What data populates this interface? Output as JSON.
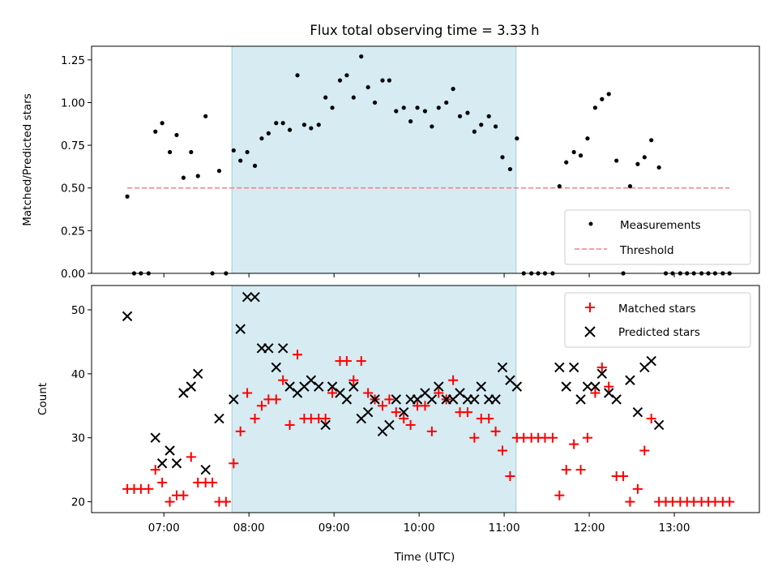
{
  "colors": {
    "band": "#add8e6",
    "measure": "#000000",
    "threshold": "#ff7f7f",
    "matched": "#ff0000",
    "predicted": "#000000"
  },
  "chart_data": [
    {
      "type": "scatter",
      "title": "Flux total observing time = 3.33 h",
      "xlabel": "",
      "ylabel": "Matched/Predicted stars",
      "xlim": [
        6.15,
        14.0
      ],
      "ylim": [
        0,
        1.33
      ],
      "yticks": [
        0.0,
        0.25,
        0.5,
        0.75,
        1.0,
        1.25
      ],
      "ytick_labels": [
        "0.00",
        "0.25",
        "0.50",
        "0.75",
        "1.00",
        "1.25"
      ],
      "shaded_interval": [
        7.8,
        11.14
      ],
      "threshold": {
        "value": 0.5,
        "x_range": [
          6.57,
          13.65
        ],
        "label": "Threshold"
      },
      "legend": {
        "position": "lower-right",
        "entries": [
          "Measurements",
          "Threshold"
        ]
      },
      "series": [
        {
          "name": "Measurements",
          "points": [
            [
              6.57,
              0.45
            ],
            [
              6.65,
              0
            ],
            [
              6.73,
              0
            ],
            [
              6.82,
              0
            ],
            [
              6.9,
              0.83
            ],
            [
              6.98,
              0.88
            ],
            [
              7.07,
              0.71
            ],
            [
              7.15,
              0.81
            ],
            [
              7.23,
              0.56
            ],
            [
              7.32,
              0.71
            ],
            [
              7.4,
              0.57
            ],
            [
              7.49,
              0.92
            ],
            [
              7.57,
              0
            ],
            [
              7.65,
              0.6
            ],
            [
              7.73,
              0
            ],
            [
              7.82,
              0.72
            ],
            [
              7.9,
              0.66
            ],
            [
              7.98,
              0.71
            ],
            [
              8.07,
              0.63
            ],
            [
              8.15,
              0.79
            ],
            [
              8.23,
              0.82
            ],
            [
              8.32,
              0.88
            ],
            [
              8.4,
              0.88
            ],
            [
              8.48,
              0.84
            ],
            [
              8.57,
              1.16
            ],
            [
              8.65,
              0.87
            ],
            [
              8.73,
              0.85
            ],
            [
              8.82,
              0.87
            ],
            [
              8.9,
              1.03
            ],
            [
              8.98,
              0.97
            ],
            [
              9.07,
              1.13
            ],
            [
              9.15,
              1.16
            ],
            [
              9.23,
              1.03
            ],
            [
              9.32,
              1.27
            ],
            [
              9.4,
              1.09
            ],
            [
              9.48,
              1.0
            ],
            [
              9.57,
              1.13
            ],
            [
              9.65,
              1.13
            ],
            [
              9.73,
              0.95
            ],
            [
              9.82,
              0.97
            ],
            [
              9.9,
              0.89
            ],
            [
              9.98,
              0.97
            ],
            [
              10.07,
              0.95
            ],
            [
              10.15,
              0.86
            ],
            [
              10.23,
              0.97
            ],
            [
              10.32,
              1.0
            ],
            [
              10.4,
              1.08
            ],
            [
              10.48,
              0.92
            ],
            [
              10.57,
              0.94
            ],
            [
              10.65,
              0.83
            ],
            [
              10.73,
              0.87
            ],
            [
              10.82,
              0.92
            ],
            [
              10.9,
              0.86
            ],
            [
              10.98,
              0.68
            ],
            [
              11.07,
              0.61
            ],
            [
              11.15,
              0.79
            ],
            [
              11.23,
              0
            ],
            [
              11.32,
              0
            ],
            [
              11.4,
              0
            ],
            [
              11.48,
              0
            ],
            [
              11.57,
              0
            ],
            [
              11.65,
              0.51
            ],
            [
              11.73,
              0.65
            ],
            [
              11.82,
              0.71
            ],
            [
              11.9,
              0.69
            ],
            [
              11.98,
              0.79
            ],
            [
              12.07,
              0.97
            ],
            [
              12.15,
              1.02
            ],
            [
              12.23,
              1.05
            ],
            [
              12.32,
              0.66
            ],
            [
              12.4,
              0
            ],
            [
              12.48,
              0.51
            ],
            [
              12.57,
              0.64
            ],
            [
              12.65,
              0.68
            ],
            [
              12.73,
              0.78
            ],
            [
              12.82,
              0.62
            ],
            [
              12.9,
              0
            ],
            [
              12.98,
              0
            ],
            [
              13.07,
              0
            ],
            [
              13.15,
              0
            ],
            [
              13.23,
              0
            ],
            [
              13.32,
              0
            ],
            [
              13.4,
              0
            ],
            [
              13.48,
              0
            ],
            [
              13.57,
              0
            ],
            [
              13.65,
              0
            ]
          ]
        }
      ]
    },
    {
      "type": "scatter",
      "title": "",
      "xlabel": "Time (UTC)",
      "ylabel": "Count",
      "xlim": [
        6.15,
        14.0
      ],
      "ylim": [
        18.3,
        53.8
      ],
      "yticks": [
        20,
        30,
        40,
        50
      ],
      "ytick_labels": [
        "20",
        "30",
        "40",
        "50"
      ],
      "xticks": [
        7,
        8,
        9,
        10,
        11,
        12,
        13
      ],
      "xtick_labels": [
        "07:00",
        "08:00",
        "09:00",
        "10:00",
        "11:00",
        "12:00",
        "13:00"
      ],
      "shaded_interval": [
        7.8,
        11.14
      ],
      "legend": {
        "position": "top-right",
        "entries": [
          "Matched stars",
          "Predicted stars"
        ]
      },
      "series": [
        {
          "name": "Matched stars",
          "marker": "+",
          "points": [
            [
              6.57,
              22
            ],
            [
              6.65,
              22
            ],
            [
              6.73,
              22
            ],
            [
              6.82,
              22
            ],
            [
              6.9,
              25
            ],
            [
              6.98,
              23
            ],
            [
              7.07,
              20
            ],
            [
              7.15,
              21
            ],
            [
              7.23,
              21
            ],
            [
              7.32,
              27
            ],
            [
              7.4,
              23
            ],
            [
              7.49,
              23
            ],
            [
              7.57,
              23
            ],
            [
              7.65,
              20
            ],
            [
              7.73,
              20
            ],
            [
              7.82,
              26
            ],
            [
              7.9,
              31
            ],
            [
              7.98,
              37
            ],
            [
              8.07,
              33
            ],
            [
              8.15,
              35
            ],
            [
              8.23,
              36
            ],
            [
              8.32,
              36
            ],
            [
              8.4,
              39
            ],
            [
              8.48,
              32
            ],
            [
              8.57,
              43
            ],
            [
              8.65,
              33
            ],
            [
              8.73,
              33
            ],
            [
              8.82,
              33
            ],
            [
              8.9,
              33
            ],
            [
              8.98,
              37
            ],
            [
              9.07,
              42
            ],
            [
              9.15,
              42
            ],
            [
              9.23,
              39
            ],
            [
              9.32,
              42
            ],
            [
              9.4,
              37
            ],
            [
              9.48,
              36
            ],
            [
              9.57,
              35
            ],
            [
              9.65,
              36
            ],
            [
              9.73,
              34
            ],
            [
              9.82,
              33
            ],
            [
              9.9,
              32
            ],
            [
              9.98,
              35
            ],
            [
              10.07,
              35
            ],
            [
              10.15,
              31
            ],
            [
              10.23,
              37
            ],
            [
              10.32,
              36
            ],
            [
              10.4,
              39
            ],
            [
              10.48,
              34
            ],
            [
              10.57,
              34
            ],
            [
              10.65,
              30
            ],
            [
              10.73,
              33
            ],
            [
              10.82,
              33
            ],
            [
              10.9,
              31
            ],
            [
              10.98,
              28
            ],
            [
              11.07,
              24
            ],
            [
              11.15,
              30
            ],
            [
              11.23,
              30
            ],
            [
              11.32,
              30
            ],
            [
              11.4,
              30
            ],
            [
              11.48,
              30
            ],
            [
              11.57,
              30
            ],
            [
              11.65,
              21
            ],
            [
              11.73,
              25
            ],
            [
              11.82,
              29
            ],
            [
              11.9,
              25
            ],
            [
              11.98,
              30
            ],
            [
              12.07,
              37
            ],
            [
              12.15,
              41
            ],
            [
              12.23,
              38
            ],
            [
              12.32,
              24
            ],
            [
              12.4,
              24
            ],
            [
              12.48,
              20
            ],
            [
              12.57,
              22
            ],
            [
              12.65,
              28
            ],
            [
              12.73,
              33
            ],
            [
              12.82,
              20
            ],
            [
              12.9,
              20
            ],
            [
              12.98,
              20
            ],
            [
              13.07,
              20
            ],
            [
              13.15,
              20
            ],
            [
              13.23,
              20
            ],
            [
              13.32,
              20
            ],
            [
              13.4,
              20
            ],
            [
              13.48,
              20
            ],
            [
              13.57,
              20
            ],
            [
              13.65,
              20
            ]
          ]
        },
        {
          "name": "Predicted stars",
          "marker": "x",
          "points": [
            [
              6.57,
              49
            ],
            [
              6.9,
              30
            ],
            [
              6.98,
              26
            ],
            [
              7.07,
              28
            ],
            [
              7.15,
              26
            ],
            [
              7.23,
              37
            ],
            [
              7.32,
              38
            ],
            [
              7.4,
              40
            ],
            [
              7.49,
              25
            ],
            [
              7.65,
              33
            ],
            [
              7.82,
              36
            ],
            [
              7.9,
              47
            ],
            [
              7.98,
              52
            ],
            [
              8.07,
              52
            ],
            [
              8.15,
              44
            ],
            [
              8.23,
              44
            ],
            [
              8.32,
              41
            ],
            [
              8.4,
              44
            ],
            [
              8.48,
              38
            ],
            [
              8.57,
              37
            ],
            [
              8.65,
              38
            ],
            [
              8.73,
              39
            ],
            [
              8.82,
              38
            ],
            [
              8.9,
              32
            ],
            [
              8.98,
              38
            ],
            [
              9.07,
              37
            ],
            [
              9.15,
              36
            ],
            [
              9.23,
              38
            ],
            [
              9.32,
              33
            ],
            [
              9.4,
              34
            ],
            [
              9.48,
              36
            ],
            [
              9.57,
              31
            ],
            [
              9.65,
              32
            ],
            [
              9.73,
              36
            ],
            [
              9.82,
              34
            ],
            [
              9.9,
              36
            ],
            [
              9.98,
              36
            ],
            [
              10.07,
              37
            ],
            [
              10.15,
              36
            ],
            [
              10.23,
              38
            ],
            [
              10.32,
              36
            ],
            [
              10.4,
              36
            ],
            [
              10.48,
              37
            ],
            [
              10.57,
              36
            ],
            [
              10.65,
              36
            ],
            [
              10.73,
              38
            ],
            [
              10.82,
              36
            ],
            [
              10.9,
              36
            ],
            [
              10.98,
              41
            ],
            [
              11.07,
              39
            ],
            [
              11.15,
              38
            ],
            [
              11.65,
              41
            ],
            [
              11.73,
              38
            ],
            [
              11.82,
              41
            ],
            [
              11.9,
              36
            ],
            [
              11.98,
              38
            ],
            [
              12.07,
              38
            ],
            [
              12.15,
              40
            ],
            [
              12.23,
              37
            ],
            [
              12.32,
              36
            ],
            [
              12.48,
              39
            ],
            [
              12.57,
              34
            ],
            [
              12.65,
              41
            ],
            [
              12.73,
              42
            ],
            [
              12.82,
              32
            ]
          ]
        }
      ]
    }
  ]
}
